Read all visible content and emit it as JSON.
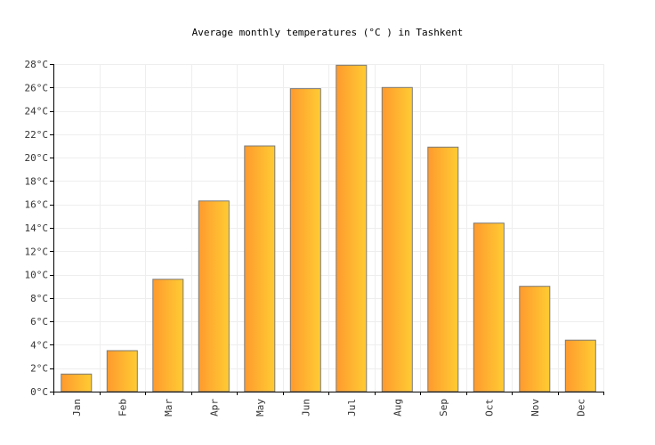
{
  "chart_data": {
    "type": "bar",
    "title": "Average monthly temperatures (°C ) in Tashkent",
    "xlabel": "",
    "ylabel": "",
    "categories": [
      "Jan",
      "Feb",
      "Mar",
      "Apr",
      "May",
      "Jun",
      "Jul",
      "Aug",
      "Sep",
      "Oct",
      "Nov",
      "Dec"
    ],
    "values": [
      1.5,
      3.5,
      9.6,
      16.3,
      21.0,
      25.9,
      27.9,
      26.0,
      20.9,
      14.4,
      9.0,
      4.4
    ],
    "ylim": [
      0,
      28
    ],
    "yticks": [
      0,
      2,
      4,
      6,
      8,
      10,
      12,
      14,
      16,
      18,
      20,
      22,
      24,
      26,
      28
    ],
    "ytick_labels": [
      "0°C",
      "2°C",
      "4°C",
      "6°C",
      "8°C",
      "10°C",
      "12°C",
      "14°C",
      "16°C",
      "18°C",
      "20°C",
      "22°C",
      "24°C",
      "26°C",
      "28°C"
    ],
    "grid": true,
    "legend": "none",
    "colors": {
      "bar_start": "#ff9a2e",
      "bar_end": "#ffcc33",
      "bar_stroke": "#7a7a7a",
      "grid": "#eeeeee",
      "axis": "#000000"
    }
  }
}
